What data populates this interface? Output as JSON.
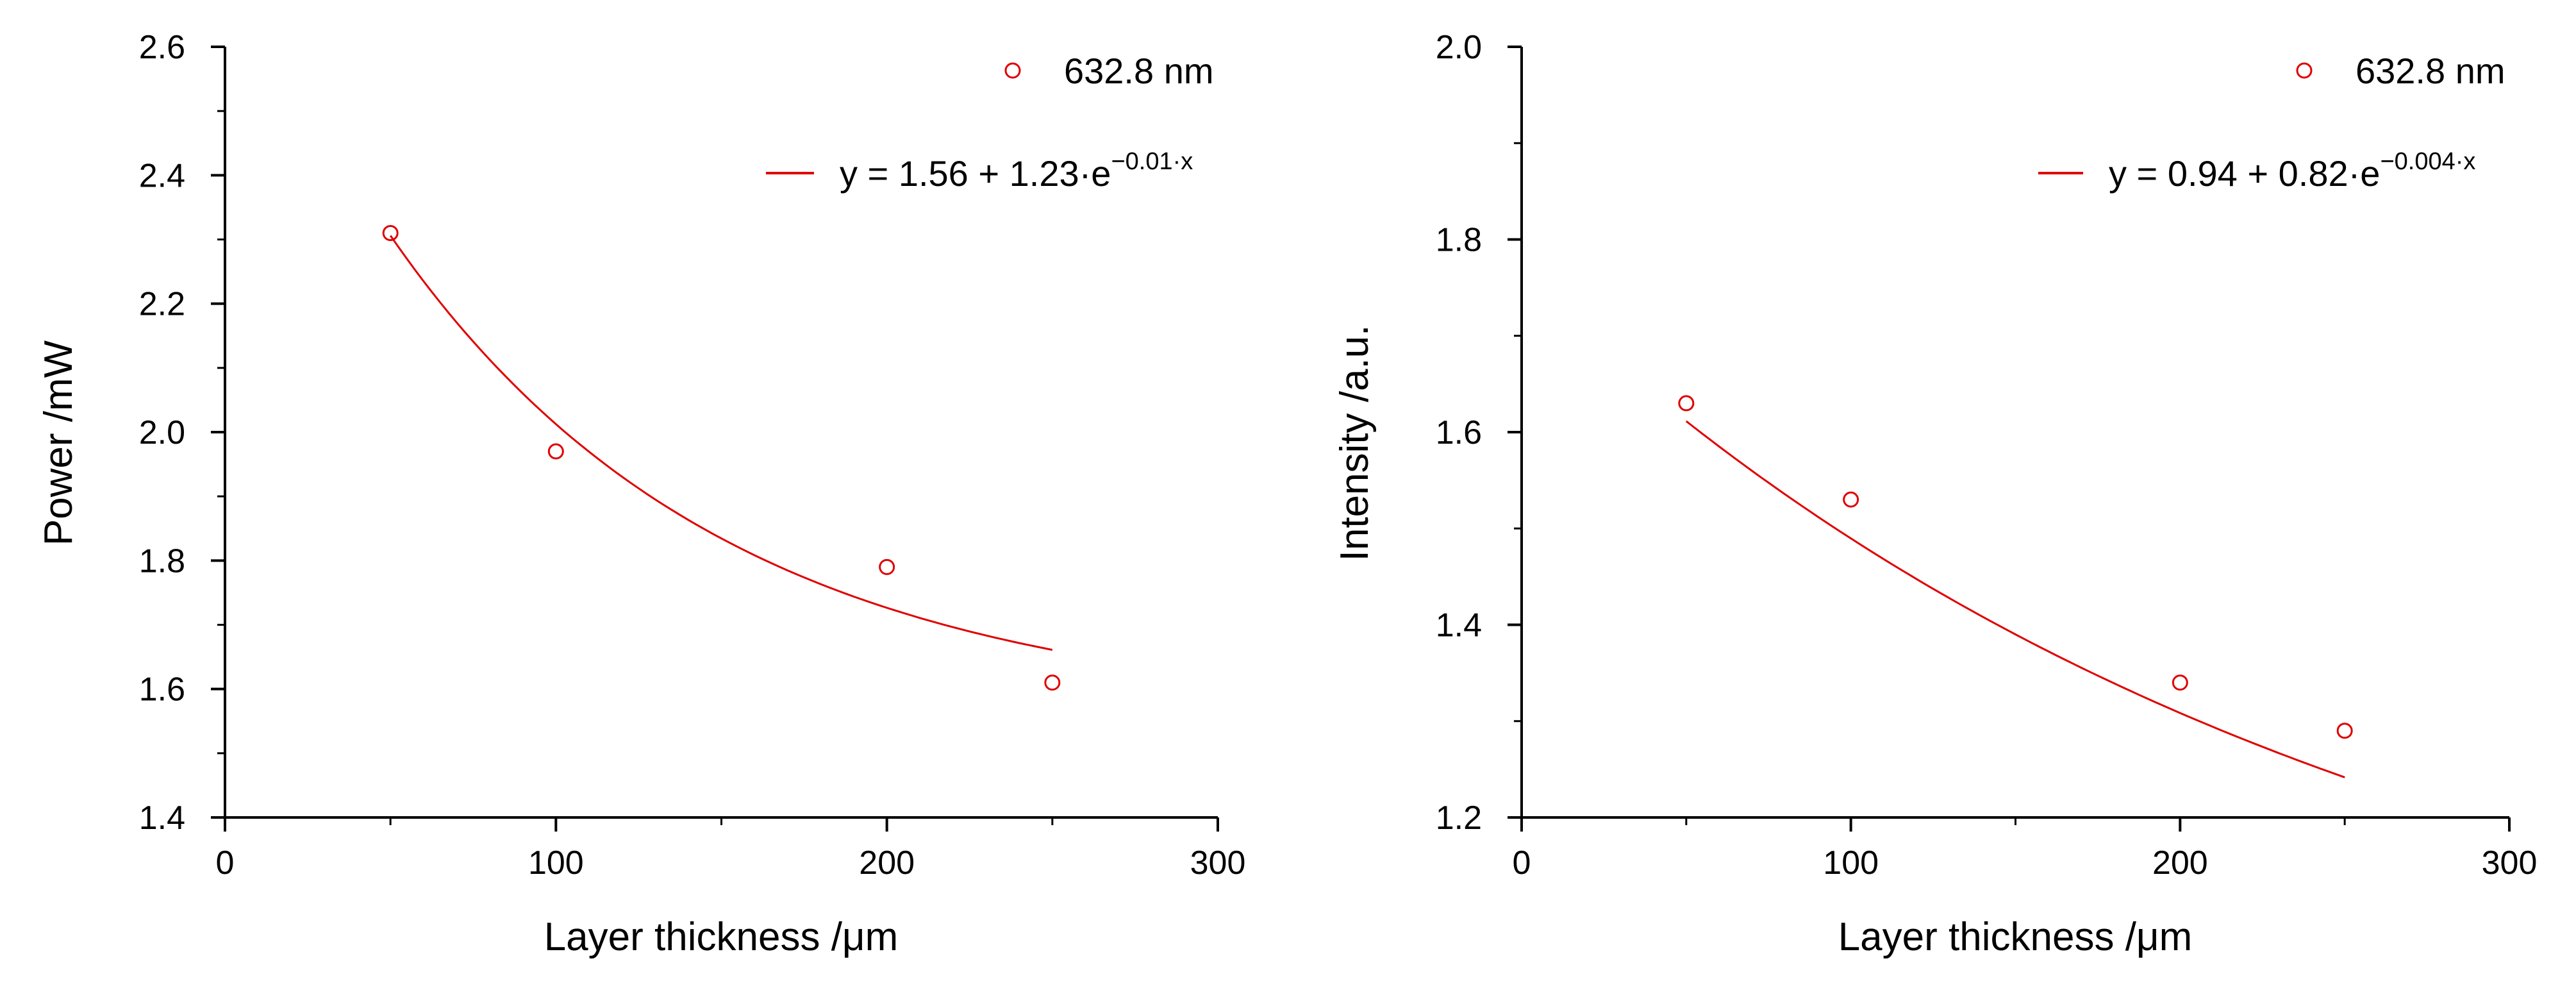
{
  "chart_data": [
    {
      "type": "scatter",
      "title": "",
      "xlabel": "Layer thickness /μm",
      "ylabel": "Power /mW",
      "xlim": [
        0,
        300
      ],
      "ylim": [
        1.4,
        2.6
      ],
      "xticks": [
        0,
        100,
        200,
        300
      ],
      "yticks": [
        1.4,
        1.6,
        1.8,
        2.0,
        2.2,
        2.4,
        2.6
      ],
      "ytick_labels": [
        "1.4",
        "1.6",
        "1.8",
        "2.0",
        "2.2",
        "2.4",
        "2.6"
      ],
      "grid": false,
      "legend_position": "top-right",
      "color": "#e00000",
      "series": [
        {
          "name": "632.8 nm",
          "kind": "points",
          "x": [
            50,
            100,
            200,
            250
          ],
          "y": [
            2.31,
            1.97,
            1.79,
            1.61
          ]
        }
      ],
      "fit": {
        "a": 1.56,
        "b": 1.23,
        "k": 0.01,
        "x_range": [
          50,
          250
        ],
        "legend_main": "y = 1.56 + 1.23",
        "legend_e": "e",
        "legend_exp": "−0.01",
        "legend_x": "x"
      }
    },
    {
      "type": "scatter",
      "title": "",
      "xlabel": "Layer thickness /μm",
      "ylabel": "Intensity /a.u.",
      "xlim": [
        0,
        300
      ],
      "ylim": [
        1.2,
        2.0
      ],
      "xticks": [
        0,
        100,
        200,
        300
      ],
      "yticks": [
        1.2,
        1.4,
        1.6,
        1.8,
        2.0
      ],
      "ytick_labels": [
        "1.2",
        "1.4",
        "1.6",
        "1.8",
        "2.0"
      ],
      "grid": false,
      "legend_position": "top-right",
      "color": "#e00000",
      "series": [
        {
          "name": "632.8 nm",
          "kind": "points",
          "x": [
            50,
            100,
            200,
            250
          ],
          "y": [
            1.63,
            1.53,
            1.34,
            1.29
          ]
        }
      ],
      "fit": {
        "a": 0.94,
        "b": 0.82,
        "k": 0.004,
        "x_range": [
          50,
          250
        ],
        "legend_main": "y = 0.94 + 0.82",
        "legend_e": "e",
        "legend_exp": "−0.004",
        "legend_x": "x"
      }
    }
  ]
}
